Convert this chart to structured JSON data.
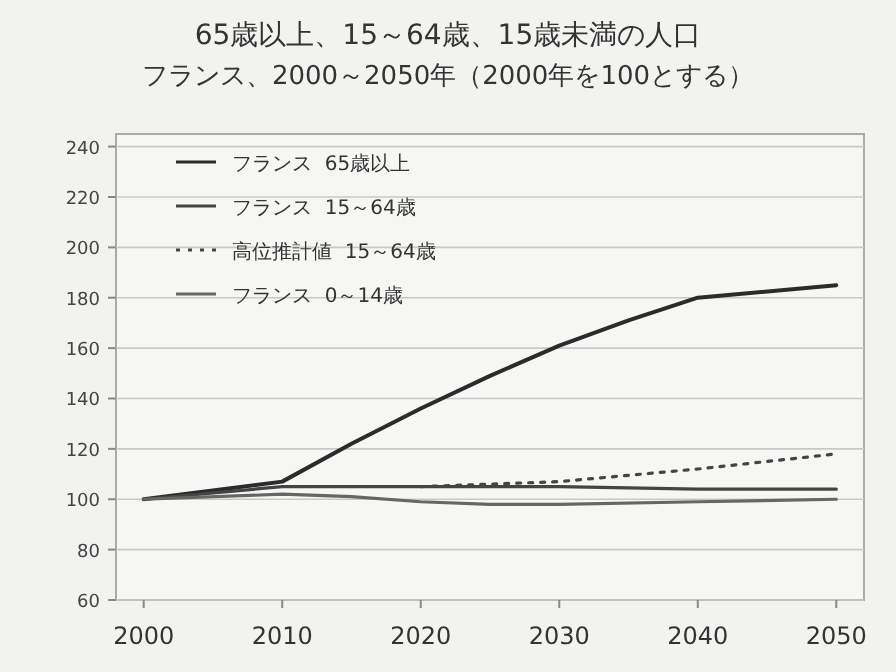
{
  "chart_data": {
    "type": "line",
    "title": "65歳以上、15～64歳、15歳未満の人口",
    "subtitle": "フランス、2000～2050年（2000年を100とする）",
    "series": [
      {
        "name": "フランス  65歳以上",
        "color": "#2b2b2b",
        "x": [
          2000,
          2010,
          2015,
          2020,
          2025,
          2030,
          2035,
          2040,
          2050
        ],
        "values": [
          100,
          107,
          122,
          136,
          149,
          161,
          171,
          180,
          185
        ]
      },
      {
        "name": "フランス  15～64歳",
        "color": "#444444",
        "x": [
          2000,
          2010,
          2020,
          2030,
          2040,
          2050
        ],
        "values": [
          100,
          105,
          105,
          105,
          104,
          104
        ]
      },
      {
        "name": "高位推計値  15～64歳",
        "color": "#444444",
        "line_style": "dotted",
        "x": [
          2020,
          2030,
          2040,
          2050
        ],
        "values": [
          105,
          107,
          112,
          118
        ]
      },
      {
        "name": "フランス  0～14歳",
        "color": "#666666",
        "x": [
          2000,
          2010,
          2015,
          2020,
          2025,
          2030,
          2040,
          2050
        ],
        "values": [
          100,
          102,
          101,
          99,
          98,
          98,
          99,
          100
        ]
      }
    ],
    "xlim": [
      1998,
      2052
    ],
    "xticks": [
      2000,
      2010,
      2020,
      2030,
      2040,
      2050
    ],
    "ylim": [
      60,
      245
    ],
    "yticks": [
      60,
      80,
      100,
      120,
      140,
      160,
      180,
      200,
      220,
      240
    ],
    "grid": "y",
    "legend": "top left",
    "line_style": "solid"
  }
}
